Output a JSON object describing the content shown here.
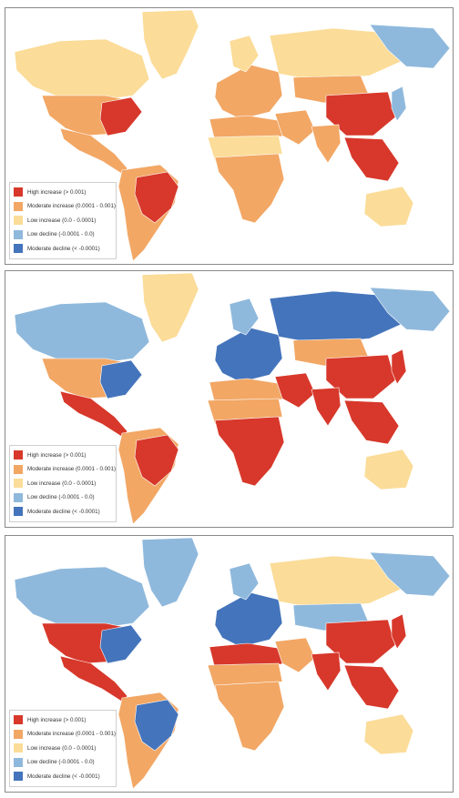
{
  "colors": {
    "ocean": "#ffffff",
    "high_increase": "#d7382b",
    "moderate_increase": "#f2a765",
    "low_increase": "#fbdc98",
    "low_decline": "#8fb9dc",
    "moderate_decline": "#4474bb"
  },
  "legend": [
    {
      "label": "High increase (> 0.001)",
      "color_key": "high_increase"
    },
    {
      "label": "Moderate increase (0.0001 - 0.001)",
      "color_key": "moderate_increase"
    },
    {
      "label": "Low increase (0.0 - 0.0001)",
      "color_key": "low_increase"
    },
    {
      "label": "Low decline (-0.0001 - 0.0)",
      "color_key": "low_decline"
    },
    {
      "label": "Moderate decline (< -0.0001)",
      "color_key": "moderate_decline"
    }
  ],
  "maps": [
    {
      "regions": {
        "greenland": "low_increase",
        "north_america_north": "low_increase",
        "usa": "moderate_increase",
        "usa_east": "high_increase",
        "mexico_central_america": "moderate_increase",
        "south_america": "moderate_increase",
        "brazil": "high_increase",
        "europe": "moderate_increase",
        "scandinavia": "low_increase",
        "russia": "low_increase",
        "siberia_east": "low_decline",
        "north_africa": "moderate_increase",
        "sahara": "low_increase",
        "sub_saharan_africa": "moderate_increase",
        "middle_east": "moderate_increase",
        "central_asia": "moderate_increase",
        "china": "high_increase",
        "india": "moderate_increase",
        "southeast_asia": "high_increase",
        "japan": "low_decline",
        "australia": "low_increase"
      }
    },
    {
      "regions": {
        "greenland": "low_increase",
        "north_america_north": "low_decline",
        "usa": "moderate_increase",
        "usa_east": "moderate_decline",
        "mexico_central_america": "high_increase",
        "south_america": "moderate_increase",
        "brazil": "high_increase",
        "europe": "moderate_decline",
        "scandinavia": "low_decline",
        "russia": "moderate_decline",
        "siberia_east": "low_decline",
        "north_africa": "moderate_increase",
        "sahara": "moderate_increase",
        "sub_saharan_africa": "high_increase",
        "middle_east": "high_increase",
        "central_asia": "moderate_increase",
        "china": "high_increase",
        "india": "high_increase",
        "southeast_asia": "high_increase",
        "japan": "high_increase",
        "australia": "low_increase"
      }
    },
    {
      "regions": {
        "greenland": "low_decline",
        "north_america_north": "low_decline",
        "usa": "high_increase",
        "usa_east": "moderate_decline",
        "mexico_central_america": "high_increase",
        "south_america": "moderate_increase",
        "brazil": "moderate_decline",
        "europe": "moderate_decline",
        "scandinavia": "low_decline",
        "russia": "low_increase",
        "siberia_east": "low_decline",
        "north_africa": "high_increase",
        "sahara": "moderate_increase",
        "sub_saharan_africa": "moderate_increase",
        "middle_east": "moderate_increase",
        "central_asia": "low_decline",
        "china": "high_increase",
        "india": "high_increase",
        "southeast_asia": "high_increase",
        "japan": "high_increase",
        "australia": "low_increase"
      }
    }
  ]
}
